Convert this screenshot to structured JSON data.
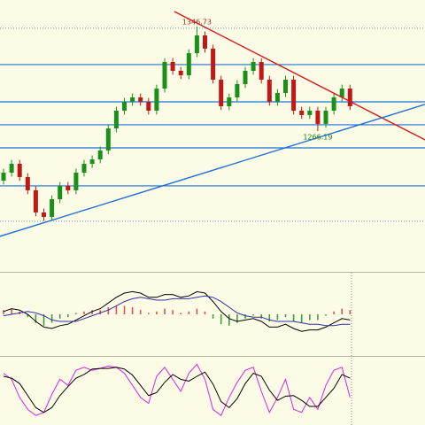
{
  "chart_data": {
    "type": "candlestick",
    "ylim": [
      1159,
      1367.2
    ],
    "up_color": "#1a8f1a",
    "down_color": "#c01818",
    "open": [
      1228.0,
      1234.1,
      1240.9,
      1230.7,
      1220.5,
      1203.4,
      1200.0,
      1213.6,
      1223.9,
      1220.5,
      1234.1,
      1240.9,
      1244.3,
      1251.2,
      1268.2,
      1281.9,
      1288.7,
      1292.1,
      1288.7,
      1281.9,
      1298.9,
      1319.4,
      1312.6,
      1309.2,
      1326.2,
      1339.9,
      1329.7,
      1305.8,
      1285.3,
      1292.1,
      1302.4,
      1312.6,
      1319.4,
      1305.8,
      1288.7,
      1295.5,
      1305.8,
      1281.9,
      1278.5,
      1281.9,
      1271.7,
      1281.9,
      1292.1,
      1298.9
    ],
    "high": [
      1237.1,
      1243.9,
      1243.9,
      1233.7,
      1223.5,
      1206.4,
      1216.6,
      1226.9,
      1226.9,
      1237.1,
      1243.9,
      1247.3,
      1254.2,
      1271.2,
      1284.9,
      1291.7,
      1295.1,
      1295.1,
      1291.7,
      1301.9,
      1322.4,
      1322.4,
      1315.6,
      1329.2,
      1346.73,
      1342.9,
      1332.7,
      1308.8,
      1295.1,
      1305.4,
      1315.6,
      1322.4,
      1322.4,
      1308.8,
      1298.5,
      1308.8,
      1308.8,
      1284.9,
      1284.9,
      1284.9,
      1284.9,
      1295.1,
      1301.9,
      1301.9
    ],
    "low": [
      1225.0,
      1231.1,
      1227.7,
      1217.5,
      1200.4,
      1197.0,
      1197.0,
      1210.6,
      1217.5,
      1217.5,
      1231.1,
      1237.9,
      1241.3,
      1248.2,
      1265.2,
      1278.9,
      1285.7,
      1285.7,
      1278.9,
      1278.9,
      1295.9,
      1309.6,
      1306.2,
      1306.2,
      1323.2,
      1326.7,
      1302.8,
      1282.3,
      1282.3,
      1289.1,
      1299.4,
      1309.6,
      1302.8,
      1285.7,
      1285.7,
      1292.5,
      1278.9,
      1275.5,
      1275.5,
      1266.19,
      1268.7,
      1278.9,
      1289.1,
      1282.3
    ],
    "close": [
      1234.1,
      1240.9,
      1230.7,
      1220.5,
      1203.4,
      1200.0,
      1213.6,
      1223.9,
      1220.5,
      1234.1,
      1240.9,
      1244.3,
      1251.2,
      1268.2,
      1281.9,
      1288.7,
      1292.1,
      1288.7,
      1281.9,
      1298.9,
      1319.4,
      1312.6,
      1309.2,
      1326.2,
      1339.9,
      1329.7,
      1305.8,
      1285.3,
      1292.1,
      1302.4,
      1312.6,
      1319.4,
      1305.8,
      1288.7,
      1295.5,
      1305.8,
      1281.9,
      1278.5,
      1281.9,
      1271.7,
      1281.9,
      1292.1,
      1298.9,
      1285.3
    ],
    "levels": {
      "color": "#1f6fd6",
      "values": [
        1317.4,
        1288.7,
        1271.0,
        1253.2,
        1223.9
      ]
    },
    "dotted_levels": {
      "color": "#6d8fd6",
      "values": [
        1345.4,
        1196.6
      ]
    },
    "trendlines": [
      {
        "color": "#d81818",
        "from": [
          21.2,
          1358.3
        ],
        "to": [
          52.3,
          1259.4
        ]
      },
      {
        "color": "#1f6fd6",
        "from": [
          -0.44,
          1185.0
        ],
        "to": [
          52.3,
          1286.7
        ]
      }
    ],
    "annotations": [
      {
        "text": "1346.73",
        "candle": 24,
        "at": "high",
        "color": "#a03020"
      },
      {
        "text": "1266.19",
        "candle": 39,
        "at": "low",
        "color": "#1a7a1a"
      }
    ],
    "macd": {
      "ylim": [
        -25,
        25
      ],
      "histogram": [
        3,
        4,
        2,
        -2,
        -6,
        -8,
        -6,
        -3,
        -2,
        1,
        2,
        3,
        3,
        5,
        6,
        6,
        5,
        3,
        1,
        2,
        4,
        3,
        1,
        2,
        4,
        2,
        -3,
        -7,
        -8,
        -6,
        -3,
        -1,
        -3,
        -5,
        -4,
        -2,
        -5,
        -6,
        -4,
        -4,
        -1,
        2,
        4,
        3
      ],
      "hist_up_color": "#e05050",
      "hist_down_color": "#3aa03a",
      "line": [
        2,
        4,
        3,
        0,
        -5,
        -9,
        -10,
        -8,
        -7,
        -4,
        -1,
        2,
        4,
        8,
        12,
        15,
        16,
        15,
        12,
        12,
        14,
        14,
        12,
        13,
        16,
        15,
        9,
        2,
        -3,
        -5,
        -4,
        -3,
        -5,
        -9,
        -9,
        -7,
        -10,
        -12,
        -11,
        -11,
        -9,
        -6,
        -3,
        -4
      ],
      "line_color": "#000000",
      "signal": [
        -1,
        0,
        1,
        2,
        1,
        -1,
        -4,
        -5,
        -5,
        -5,
        -3,
        -1,
        1,
        3,
        6,
        9,
        11,
        12,
        11,
        10,
        10,
        11,
        11,
        11,
        12,
        13,
        12,
        9,
        5,
        1,
        -1,
        -2,
        -2,
        -4,
        -5,
        -5,
        -5,
        -6,
        -7,
        -7,
        -8,
        -8,
        -7,
        -7
      ],
      "signal_color": "#3030a0"
    },
    "stochastic": {
      "ylim": [
        0,
        100
      ],
      "k": [
        80,
        70,
        40,
        20,
        10,
        15,
        45,
        70,
        60,
        85,
        90,
        85,
        88,
        92,
        90,
        80,
        60,
        40,
        30,
        75,
        90,
        70,
        50,
        80,
        95,
        70,
        20,
        10,
        40,
        65,
        85,
        90,
        50,
        15,
        40,
        70,
        20,
        15,
        40,
        20,
        60,
        85,
        90,
        40
      ],
      "k_color": "#e020e0",
      "d": [
        75,
        72,
        63,
        43,
        23,
        15,
        23,
        43,
        58,
        72,
        78,
        87,
        88,
        88,
        90,
        87,
        77,
        60,
        43,
        48,
        65,
        78,
        70,
        67,
        75,
        82,
        62,
        33,
        23,
        38,
        63,
        80,
        75,
        52,
        35,
        42,
        43,
        35,
        25,
        25,
        40,
        55,
        78,
        72
      ],
      "d_color": "#000000"
    }
  }
}
